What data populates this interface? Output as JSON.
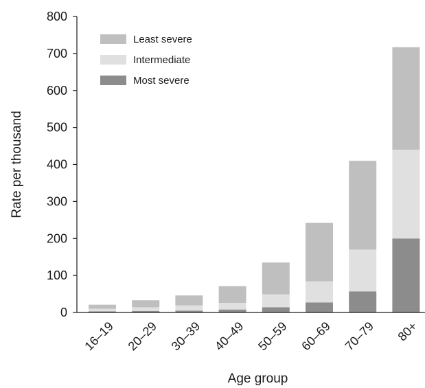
{
  "chart_data": {
    "type": "bar",
    "stacked": true,
    "title": "",
    "xlabel": "Age group",
    "ylabel": "Rate per thousand",
    "ylim": [
      0,
      800
    ],
    "yticks": [
      0,
      100,
      200,
      300,
      400,
      500,
      600,
      700,
      800
    ],
    "categories": [
      "16–19",
      "20–29",
      "30–39",
      "40–49",
      "50–59",
      "60–69",
      "70–79",
      "80+"
    ],
    "series": [
      {
        "name": "Most severe",
        "color": "#8c8c8c",
        "values": [
          3,
          4,
          5,
          8,
          14,
          27,
          57,
          200
        ]
      },
      {
        "name": "Intermediate",
        "color": "#e0e0e0",
        "values": [
          7,
          10,
          14,
          18,
          35,
          57,
          113,
          240
        ]
      },
      {
        "name": "Least severe",
        "color": "#bfbfbf",
        "values": [
          11,
          19,
          27,
          45,
          86,
          158,
          240,
          277
        ]
      }
    ],
    "legend_position": "top-left",
    "legend_order": [
      "Least severe",
      "Intermediate",
      "Most severe"
    ],
    "grid": false
  }
}
